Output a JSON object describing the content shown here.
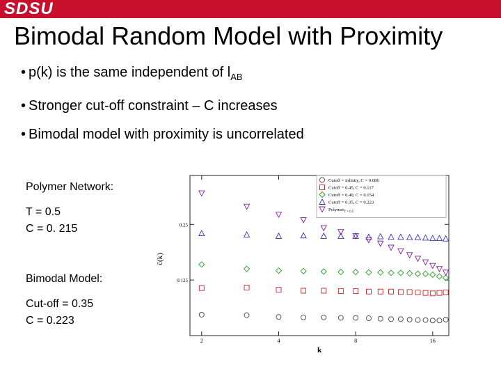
{
  "header": {
    "logo_text": "SDSU",
    "accent_color": "#c8102e"
  },
  "slide": {
    "title": "Bimodal Random Model with Proximity",
    "bullets": [
      {
        "text": "p(k) is the same independent of l",
        "sub": "AB"
      },
      {
        "text": "Stronger cut-off constraint – C increases",
        "sub": ""
      },
      {
        "text": "Bimodal model with proximity is uncorrelated",
        "sub": ""
      }
    ],
    "bullet_glyph": "•",
    "side_text": {
      "polymer_heading": "Polymer Network:",
      "polymer_t": "T = 0.5",
      "polymer_c": "C = 0. 215",
      "bimodal_heading": "Bimodal Model:",
      "bimodal_cutoff": "Cut-off = 0.35",
      "bimodal_c": "C = 0.223"
    }
  },
  "chart_data": {
    "type": "scatter",
    "xscale": "log",
    "xlim": [
      1.8,
      18.5
    ],
    "ylim": [
      0,
      0.36
    ],
    "x_ticks": [
      2,
      4,
      8,
      16
    ],
    "y_ticks": [
      0.125,
      0.25
    ],
    "y_tick_labels": [
      "0.125",
      "0.25"
    ],
    "xlabel": "k",
    "ylabel": "c̄(k)",
    "legend_position": "top-right",
    "series": [
      {
        "name": "Cutoff = infinity, C = 0.086",
        "marker": "circle",
        "color": "#444444",
        "x": [
          2,
          3,
          4,
          5,
          6,
          7,
          8,
          9,
          10,
          11,
          12,
          13,
          14,
          15,
          16,
          17,
          18
        ],
        "y": [
          0.047,
          0.046,
          0.042,
          0.041,
          0.041,
          0.04,
          0.04,
          0.039,
          0.038,
          0.037,
          0.037,
          0.036,
          0.035,
          0.035,
          0.034,
          0.034,
          0.036
        ]
      },
      {
        "name": "Cutoff = 0.45, C = 0.117",
        "marker": "square",
        "color": "#d02020",
        "x": [
          2,
          3,
          4,
          5,
          6,
          7,
          8,
          9,
          10,
          11,
          12,
          13,
          14,
          15,
          16,
          17,
          18
        ],
        "y": [
          0.107,
          0.108,
          0.103,
          0.101,
          0.101,
          0.1,
          0.1,
          0.099,
          0.099,
          0.099,
          0.098,
          0.098,
          0.097,
          0.096,
          0.095,
          0.096,
          0.097
        ]
      },
      {
        "name": "Cutoff = 0.40, C = 0.154",
        "marker": "diamond",
        "color": "#20a020",
        "x": [
          2,
          3,
          4,
          5,
          6,
          7,
          8,
          9,
          10,
          11,
          12,
          13,
          14,
          15,
          16,
          17,
          18
        ],
        "y": [
          0.16,
          0.15,
          0.146,
          0.145,
          0.144,
          0.143,
          0.143,
          0.142,
          0.142,
          0.141,
          0.141,
          0.14,
          0.139,
          0.139,
          0.137,
          0.133,
          0.13
        ]
      },
      {
        "name": "Cutoff = 0.35, C = 0.223",
        "marker": "triangle-up",
        "color": "#3030c0",
        "x": [
          2,
          3,
          4,
          5,
          6,
          7,
          8,
          9,
          10,
          11,
          12,
          13,
          14,
          15,
          16,
          17,
          18
        ],
        "y": [
          0.23,
          0.227,
          0.224,
          0.225,
          0.224,
          0.224,
          0.224,
          0.222,
          0.223,
          0.222,
          0.222,
          0.221,
          0.221,
          0.22,
          0.219,
          0.219,
          0.218
        ]
      },
      {
        "name": "Polymer",
        "name_sub": "T = 0.5",
        "marker": "triangle-down",
        "color": "#8020a0",
        "x": [
          2,
          3,
          4,
          5,
          6,
          7,
          8,
          9,
          10,
          11,
          12,
          13,
          14,
          15,
          16,
          17,
          18
        ],
        "y": [
          0.32,
          0.29,
          0.272,
          0.26,
          0.242,
          0.233,
          0.224,
          0.215,
          0.207,
          0.198,
          0.19,
          0.181,
          0.173,
          0.165,
          0.157,
          0.15,
          0.142
        ]
      }
    ]
  }
}
